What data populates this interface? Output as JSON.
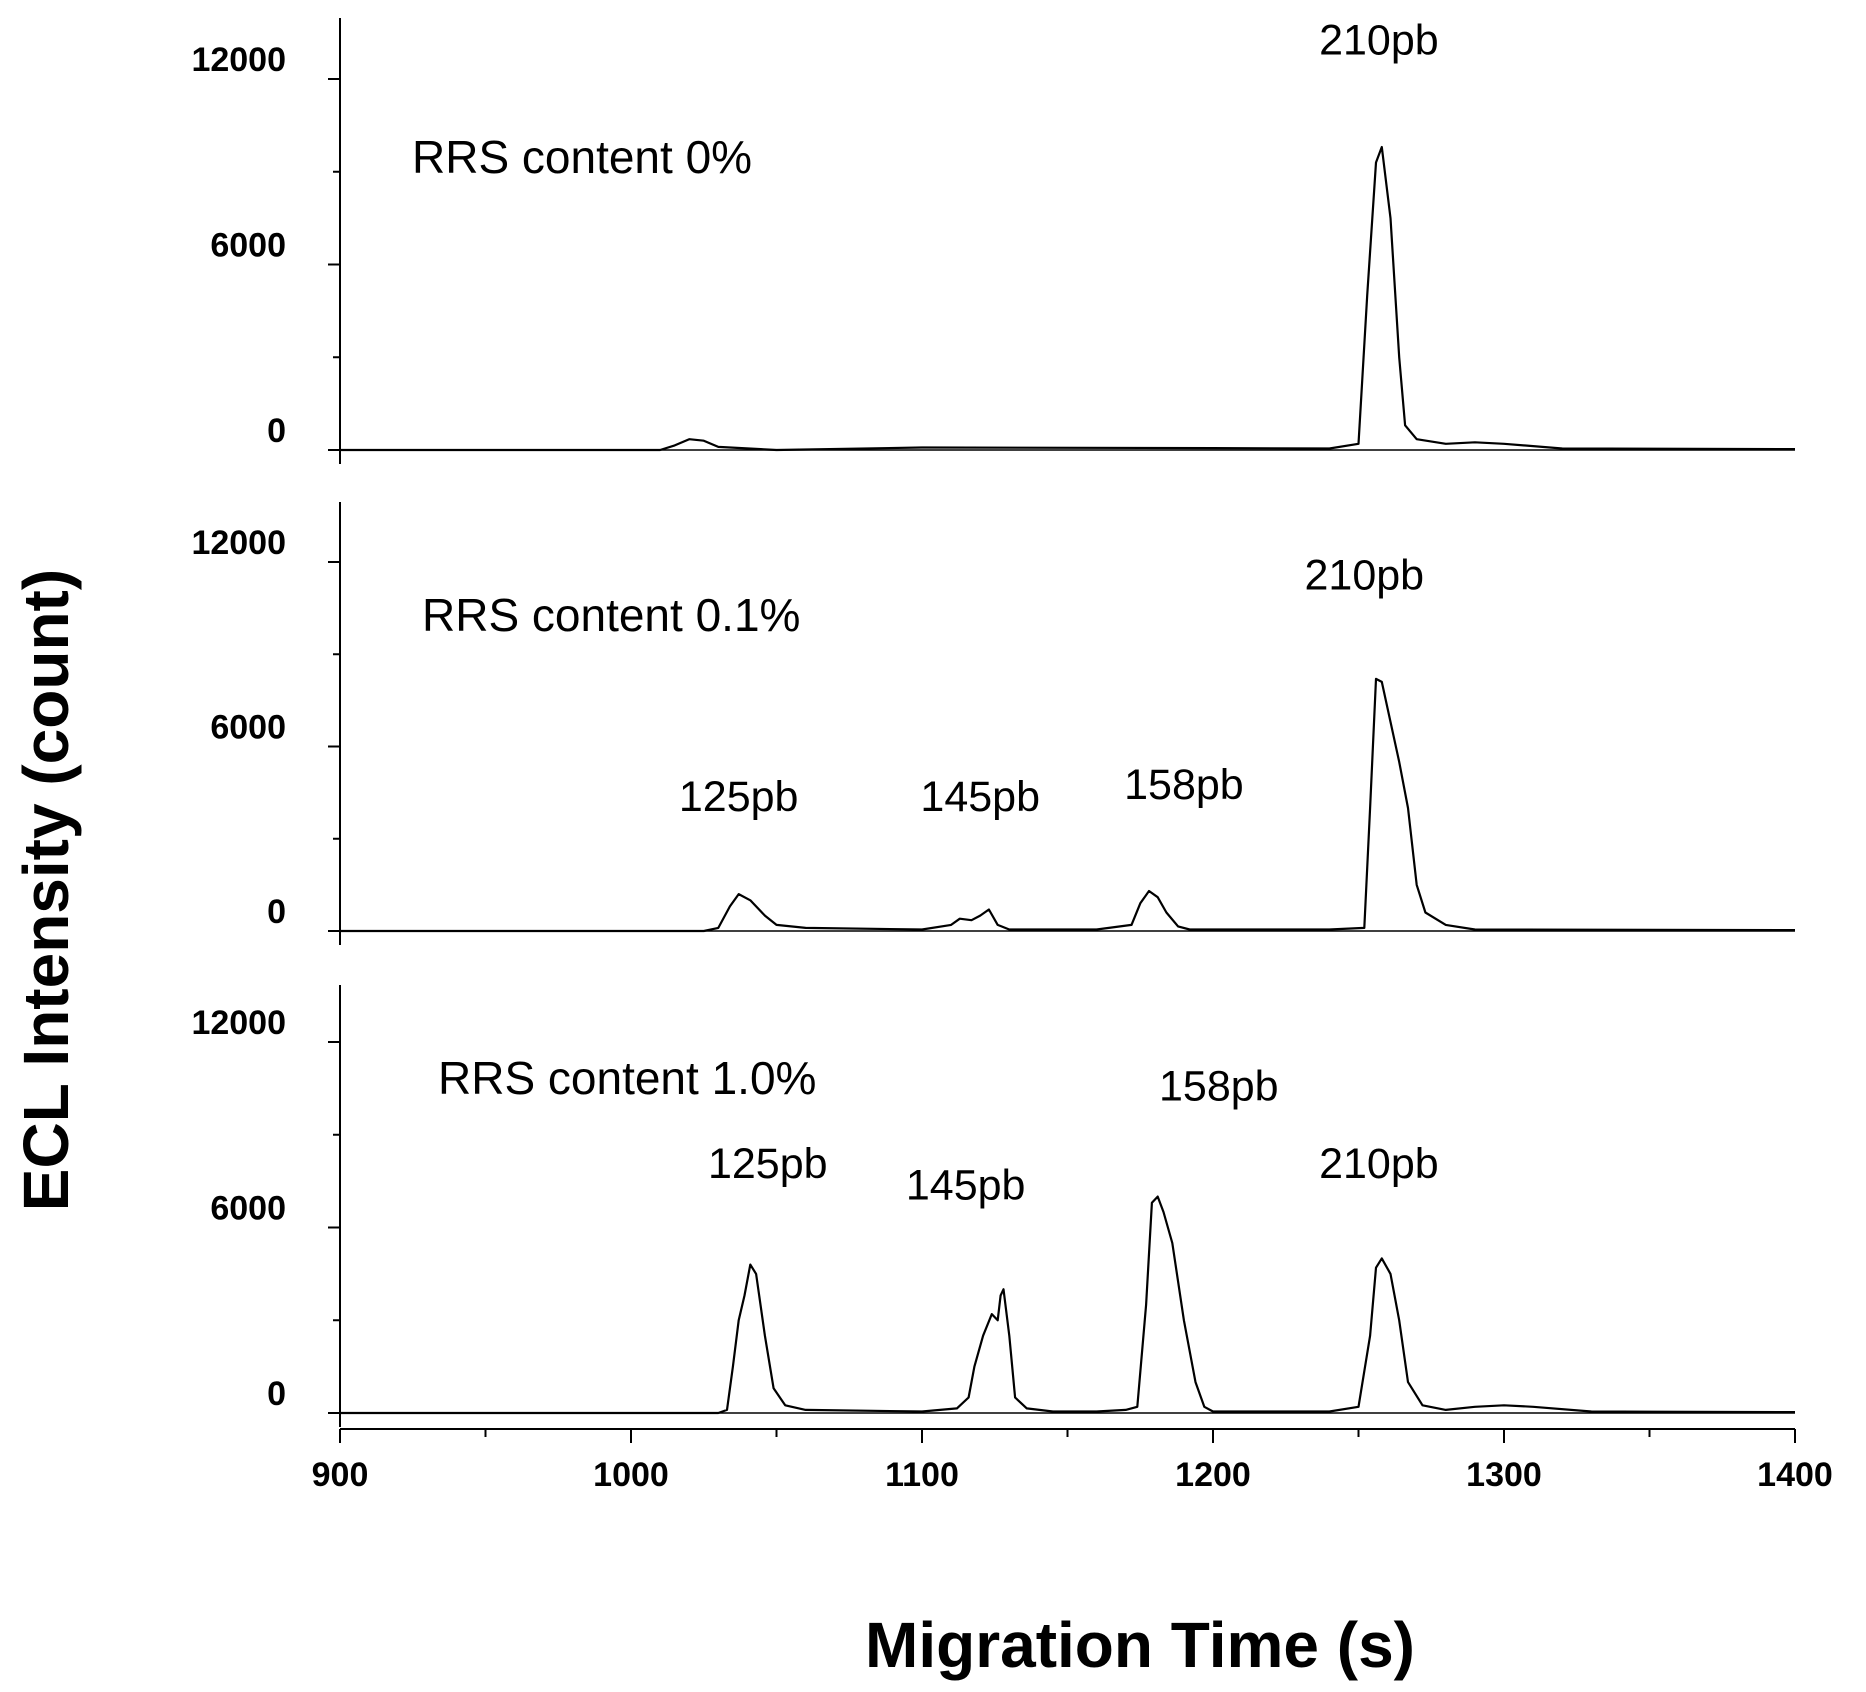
{
  "chart_data": {
    "type": "line",
    "xlabel": "Migration Time (s)",
    "ylabel": "ECL Intensity (count)",
    "xlim": [
      900,
      1400
    ],
    "x_ticks": [
      "900",
      "1000",
      "1100",
      "1200",
      "1300",
      "1400"
    ],
    "ylim": [
      -500,
      14500
    ],
    "y_tick_labels": [
      "0",
      "6000",
      "12000"
    ],
    "grid": false,
    "panels": [
      {
        "title": "RRS content 0%",
        "series": [
          {
            "x": [
              900,
              930,
              1010,
              1015,
              1020,
              1025,
              1030,
              1050,
              1100,
              1200,
              1240,
              1250,
              1253,
              1256,
              1258,
              1261,
              1264,
              1266,
              1270,
              1280,
              1290,
              1300,
              1320,
              1400
            ],
            "y": [
              0,
              0,
              0,
              150,
              350,
              300,
              100,
              0,
              80,
              60,
              50,
              200,
              5000,
              9300,
              9800,
              7500,
              3000,
              800,
              350,
              200,
              250,
              200,
              50,
              30
            ]
          }
        ],
        "peak_labels": [
          {
            "text": "210pb",
            "x": 1257,
            "y": 12800
          }
        ]
      },
      {
        "title": "RRS content 0.1%",
        "series": [
          {
            "x": [
              900,
              1000,
              1025,
              1030,
              1034,
              1037,
              1041,
              1046,
              1050,
              1060,
              1100,
              1110,
              1113,
              1117,
              1120,
              1123,
              1126,
              1130,
              1160,
              1172,
              1175,
              1178,
              1181,
              1184,
              1188,
              1192,
              1240,
              1252,
              1254,
              1256,
              1258,
              1261,
              1264,
              1267,
              1270,
              1273,
              1280,
              1290,
              1400
            ],
            "y": [
              0,
              0,
              0,
              100,
              800,
              1200,
              1000,
              500,
              200,
              100,
              50,
              200,
              400,
              350,
              500,
              700,
              200,
              50,
              50,
              200,
              900,
              1300,
              1100,
              600,
              150,
              50,
              50,
              100,
              4000,
              8200,
              8100,
              6800,
              5500,
              4000,
              1500,
              600,
              200,
              50,
              30
            ]
          }
        ],
        "peak_labels": [
          {
            "text": "125pb",
            "x": 1037,
            "y": 3900
          },
          {
            "text": "145pb",
            "x": 1120,
            "y": 3900
          },
          {
            "text": "158pb",
            "x": 1190,
            "y": 4300
          },
          {
            "text": "210pb",
            "x": 1252,
            "y": 11100
          }
        ]
      },
      {
        "title": "RRS content 1.0%",
        "series": [
          {
            "x": [
              900,
              1000,
              1030,
              1033,
              1035,
              1037,
              1039,
              1041,
              1043,
              1046,
              1049,
              1053,
              1060,
              1100,
              1112,
              1116,
              1118,
              1121,
              1124,
              1126,
              1127,
              1128,
              1130,
              1132,
              1136,
              1145,
              1160,
              1170,
              1174,
              1177,
              1179,
              1181,
              1183,
              1186,
              1190,
              1194,
              1197,
              1200,
              1240,
              1250,
              1254,
              1256,
              1258,
              1261,
              1264,
              1267,
              1272,
              1280,
              1290,
              1300,
              1310,
              1330,
              1400
            ],
            "y": [
              0,
              0,
              0,
              100,
              1500,
              3000,
              3800,
              4800,
              4500,
              2500,
              800,
              250,
              100,
              50,
              150,
              500,
              1500,
              2500,
              3200,
              3000,
              3800,
              4000,
              2500,
              500,
              150,
              50,
              50,
              100,
              200,
              3500,
              6800,
              7000,
              6500,
              5500,
              3000,
              1000,
              200,
              50,
              50,
              200,
              2500,
              4700,
              5000,
              4500,
              3000,
              1000,
              250,
              100,
              200,
              250,
              200,
              50,
              30
            ]
          }
        ],
        "peak_labels": [
          {
            "text": "125pb",
            "x": 1047,
            "y": 7600
          },
          {
            "text": "145pb",
            "x": 1115,
            "y": 6900
          },
          {
            "text": "158pb",
            "x": 1202,
            "y": 10100
          },
          {
            "text": "210pb",
            "x": 1257,
            "y": 7600
          }
        ]
      }
    ]
  }
}
